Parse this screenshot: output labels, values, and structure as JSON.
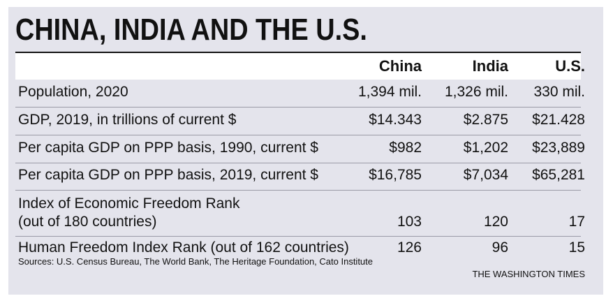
{
  "title": "CHINA, INDIA AND THE U.S.",
  "columns": [
    "China",
    "India",
    "U.S."
  ],
  "rows": [
    {
      "label": "Population, 2020",
      "label2": "",
      "values": [
        "1,394 mil.",
        "1,326 mil.",
        "330 mil."
      ]
    },
    {
      "label": "GDP, 2019, in trillions of current $",
      "label2": "",
      "values": [
        "$14.343",
        "$2.875",
        "$21.428"
      ]
    },
    {
      "label": "Per capita GDP on PPP basis, 1990, current $",
      "label2": "",
      "values": [
        "$982",
        "$1,202",
        "$23,889"
      ]
    },
    {
      "label": "Per capita GDP on PPP basis, 2019, current $",
      "label2": "",
      "values": [
        "$16,785",
        "$7,034",
        "$65,281"
      ]
    },
    {
      "label": "Index of Economic Freedom Rank",
      "label2": "(out of 180 countries)",
      "values": [
        "103",
        "120",
        "17"
      ]
    },
    {
      "label": "Human Freedom Index Rank (out of 162 countries)",
      "label2": "",
      "values": [
        "126",
        "96",
        "15"
      ]
    }
  ],
  "sources": "Sources: U.S. Census Bureau, The World Bank, The Heritage Foundation, Cato Institute",
  "brand": "THE WASHINGTON TIMES",
  "colors": {
    "panel": "#e4e4ec",
    "header_band": "#ffffff",
    "text": "#111111",
    "rule": "#9a9aa6"
  }
}
